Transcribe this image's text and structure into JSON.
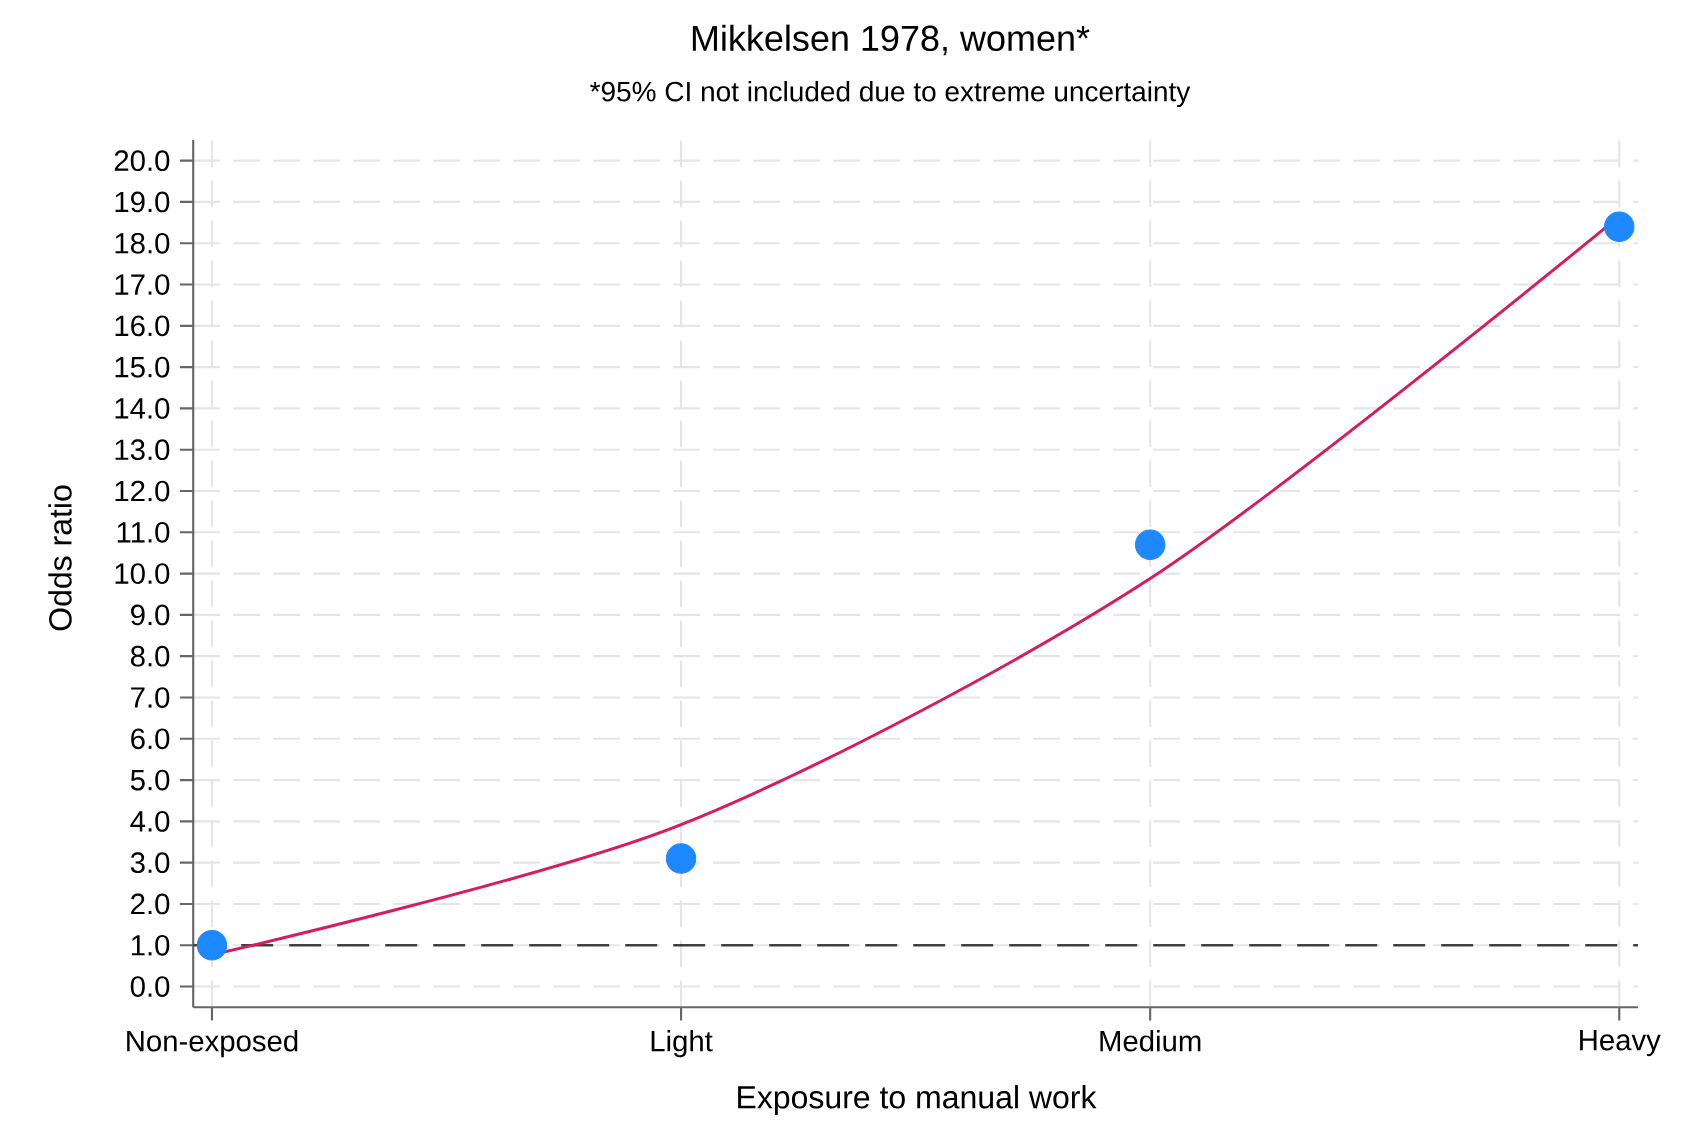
{
  "chart_data": {
    "type": "scatter",
    "title": "Mikkelsen 1978, women*",
    "subtitle": "*95% CI not included due to extreme uncertainty",
    "xlabel": "Exposure to manual work",
    "ylabel": "Odds ratio",
    "categories": [
      "Non-exposed",
      "Light",
      "Medium",
      "Heavy"
    ],
    "ylim": [
      0,
      20
    ],
    "yticks": [
      {
        "value": 0,
        "label": "0.0"
      },
      {
        "value": 1,
        "label": "1.0"
      },
      {
        "value": 2,
        "label": "2.0"
      },
      {
        "value": 3,
        "label": "3.0"
      },
      {
        "value": 4,
        "label": "4.0"
      },
      {
        "value": 5,
        "label": "5.0"
      },
      {
        "value": 6,
        "label": "6.0"
      },
      {
        "value": 7,
        "label": "7.0"
      },
      {
        "value": 8,
        "label": "8.0"
      },
      {
        "value": 9,
        "label": "9.0"
      },
      {
        "value": 10,
        "label": "10.0"
      },
      {
        "value": 11,
        "label": "11.0"
      },
      {
        "value": 12,
        "label": "12.0"
      },
      {
        "value": 13,
        "label": "13.0"
      },
      {
        "value": 14,
        "label": "14.0"
      },
      {
        "value": 15,
        "label": "15.0"
      },
      {
        "value": 16,
        "label": "16.0"
      },
      {
        "value": 17,
        "label": "17.0"
      },
      {
        "value": 18,
        "label": "18.0"
      },
      {
        "value": 19,
        "label": "19.0"
      },
      {
        "value": 20,
        "label": "20.0"
      }
    ],
    "grid": true,
    "ref_lines": [
      {
        "axis": "y",
        "value": 1,
        "color": "#404040",
        "line_style": "dashed"
      }
    ],
    "series": [
      {
        "color": "#1e88ff",
        "marker": "circle",
        "values": [
          1.0,
          3.1,
          10.7,
          18.4
        ]
      },
      {
        "type": "line",
        "color": "#d81b60",
        "line_style": "solid",
        "values": [
          0.77,
          3.92,
          9.88,
          18.65
        ]
      }
    ]
  }
}
